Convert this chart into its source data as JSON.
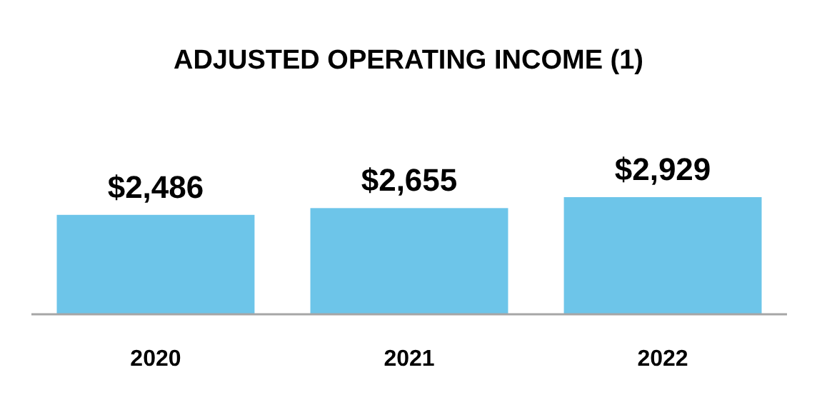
{
  "chart_data": {
    "type": "bar",
    "title": "ADJUSTED OPERATING INCOME (1)",
    "categories": [
      "2020",
      "2021",
      "2022"
    ],
    "values": [
      2486,
      2655,
      2929
    ],
    "value_labels": [
      "$2,486",
      "$2,655",
      "$2,929"
    ],
    "color": "#6dc5e9"
  }
}
